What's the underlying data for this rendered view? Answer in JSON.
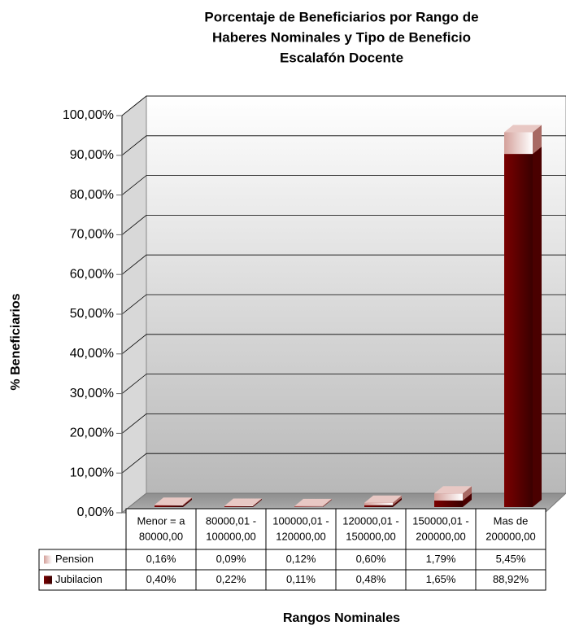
{
  "chart_data": {
    "type": "bar3d-stacked",
    "title": [
      "Porcentaje de Beneficiarios por Rango de",
      "Haberes Nominales y Tipo de Beneficio",
      "Escalafón Docente"
    ],
    "xlabel": "Rangos Nominales",
    "ylabel": "% Beneficiarios",
    "categories": [
      [
        "Menor = a",
        "80000,00"
      ],
      [
        "80000,01 -",
        "100000,00"
      ],
      [
        "100000,01 -",
        "120000,00"
      ],
      [
        "120000,01 -",
        "150000,00"
      ],
      [
        "150000,01 -",
        "200000,00"
      ],
      [
        "Mas de",
        "200000,00"
      ]
    ],
    "series": [
      {
        "name": "Jubilacion",
        "color": "#7a0000",
        "values": [
          0.4,
          0.22,
          0.11,
          0.48,
          1.65,
          88.92
        ],
        "value_labels": [
          "0,40%",
          "0,22%",
          "0,11%",
          "0,48%",
          "1,65%",
          "88,92%"
        ]
      },
      {
        "name": "Pension",
        "color": "#d4a09a",
        "values": [
          0.16,
          0.09,
          0.12,
          0.6,
          1.79,
          5.45
        ],
        "value_labels": [
          "0,16%",
          "0,09%",
          "0,12%",
          "0,60%",
          "1,79%",
          "5,45%"
        ]
      }
    ],
    "table_order": [
      1,
      0
    ],
    "ylim": [
      0,
      100
    ],
    "yticks": [
      {
        "value": 0,
        "label": "0,00%"
      },
      {
        "value": 10,
        "label": "10,00%"
      },
      {
        "value": 20,
        "label": "20,00%"
      },
      {
        "value": 30,
        "label": "30,00%"
      },
      {
        "value": 40,
        "label": "40,00%"
      },
      {
        "value": 50,
        "label": "50,00%"
      },
      {
        "value": 60,
        "label": "60,00%"
      },
      {
        "value": 70,
        "label": "70,00%"
      },
      {
        "value": 80,
        "label": "80,00%"
      },
      {
        "value": 90,
        "label": "90,00%"
      },
      {
        "value": 100,
        "label": "100,00%"
      }
    ],
    "grid": true
  }
}
